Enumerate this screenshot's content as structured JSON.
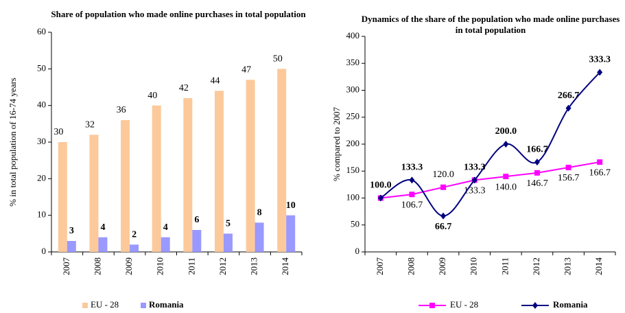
{
  "chart_data": [
    {
      "type": "bar",
      "title": "Share of population who made online purchases in total population",
      "y_label": "% in total population of 16-74 years",
      "categories": [
        "2007",
        "2008",
        "2009",
        "2010",
        "2011",
        "2012",
        "2013",
        "2014"
      ],
      "series": [
        {
          "name": "EU - 28",
          "color": "#fcc99b",
          "values": [
            30,
            32,
            36,
            40,
            42,
            44,
            47,
            50
          ]
        },
        {
          "name": "Romania",
          "color": "#9999ff",
          "values": [
            3,
            4,
            2,
            4,
            6,
            5,
            8,
            10
          ]
        }
      ],
      "ylim": [
        0,
        60
      ],
      "yticks": [
        0,
        10,
        20,
        30,
        40,
        50,
        60
      ],
      "legend": "bottom"
    },
    {
      "type": "line",
      "title": "Dynamics of the share of the population who made online purchases in total population",
      "y_label": "% compared to 2007",
      "categories": [
        "2007",
        "2008",
        "2009",
        "2010",
        "2011",
        "2012",
        "2013",
        "2014"
      ],
      "series": [
        {
          "name": "EU - 28",
          "color": "#ff00ff",
          "values": [
            100,
            106.7,
            120,
            133.3,
            140,
            146.7,
            156.7,
            166.7
          ],
          "value_labels": [
            null,
            "106.7",
            "120.0",
            "133.3",
            "140.0",
            "146.7",
            "156.7",
            "166.7"
          ]
        },
        {
          "name": "Romania",
          "color": "#000080",
          "values": [
            100,
            133.3,
            66.7,
            133.3,
            200,
            166.7,
            266.7,
            333.3
          ],
          "value_labels": [
            "100.0",
            "133.3",
            "66.7",
            "133.3",
            "200.0",
            "166.7",
            "266.7",
            "333.3"
          ]
        }
      ],
      "ylim": [
        0,
        400
      ],
      "yticks": [
        0,
        50,
        100,
        150,
        200,
        250,
        300,
        350,
        400
      ],
      "legend": "bottom"
    }
  ]
}
